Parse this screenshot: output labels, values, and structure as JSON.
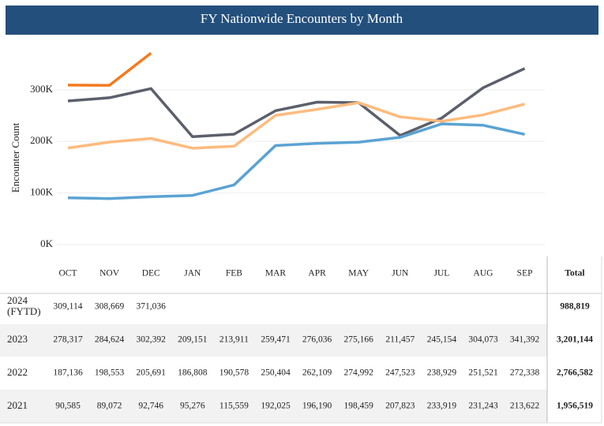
{
  "chart_data": {
    "type": "line",
    "title": "FY Nationwide Encounters by Month",
    "y_label": "Encounter Count",
    "categories": [
      "OCT",
      "NOV",
      "DEC",
      "JAN",
      "FEB",
      "MAR",
      "APR",
      "MAY",
      "JUN",
      "JUL",
      "AUG",
      "SEP"
    ],
    "total_header": "Total",
    "ylim": [
      0,
      390000
    ],
    "yticks": [
      {
        "value": 0,
        "label": "0K"
      },
      {
        "value": 100000,
        "label": "100K"
      },
      {
        "value": 200000,
        "label": "200K"
      },
      {
        "value": 300000,
        "label": "300K"
      }
    ],
    "grid": true,
    "series": [
      {
        "name": "2024 (FYTD)",
        "color": "#f47a20",
        "values": [
          309114,
          308669,
          371036,
          null,
          null,
          null,
          null,
          null,
          null,
          null,
          null,
          null
        ],
        "value_labels": [
          "309,114",
          "308,669",
          "371,036",
          null,
          null,
          null,
          null,
          null,
          null,
          null,
          null,
          null
        ],
        "total": "988,819"
      },
      {
        "name": "2023",
        "color": "#5b606b",
        "values": [
          278317,
          284624,
          302392,
          209151,
          213911,
          259471,
          276036,
          275166,
          211457,
          245154,
          304073,
          341392
        ],
        "value_labels": [
          "278,317",
          "284,624",
          "302,392",
          "209,151",
          "213,911",
          "259,471",
          "276,036",
          "275,166",
          "211,457",
          "245,154",
          "304,073",
          "341,392"
        ],
        "total": "3,201,144"
      },
      {
        "name": "2022",
        "color": "#fdbb7e",
        "values": [
          187136,
          198553,
          205691,
          186808,
          190578,
          250404,
          262109,
          274992,
          247523,
          238929,
          251521,
          272338
        ],
        "value_labels": [
          "187,136",
          "198,553",
          "205,691",
          "186,808",
          "190,578",
          "250,404",
          "262,109",
          "274,992",
          "247,523",
          "238,929",
          "251,521",
          "272,338"
        ],
        "total": "2,766,582"
      },
      {
        "name": "2021",
        "color": "#5ba3d3",
        "values": [
          90585,
          89072,
          92746,
          95276,
          115559,
          192025,
          196190,
          198459,
          207823,
          233919,
          231243,
          213622
        ],
        "value_labels": [
          "90,585",
          "89,072",
          "92,746",
          "95,276",
          "115,559",
          "192,025",
          "196,190",
          "198,459",
          "207,823",
          "233,919",
          "231,243",
          "213,622"
        ],
        "total": "1,956,519"
      }
    ]
  }
}
